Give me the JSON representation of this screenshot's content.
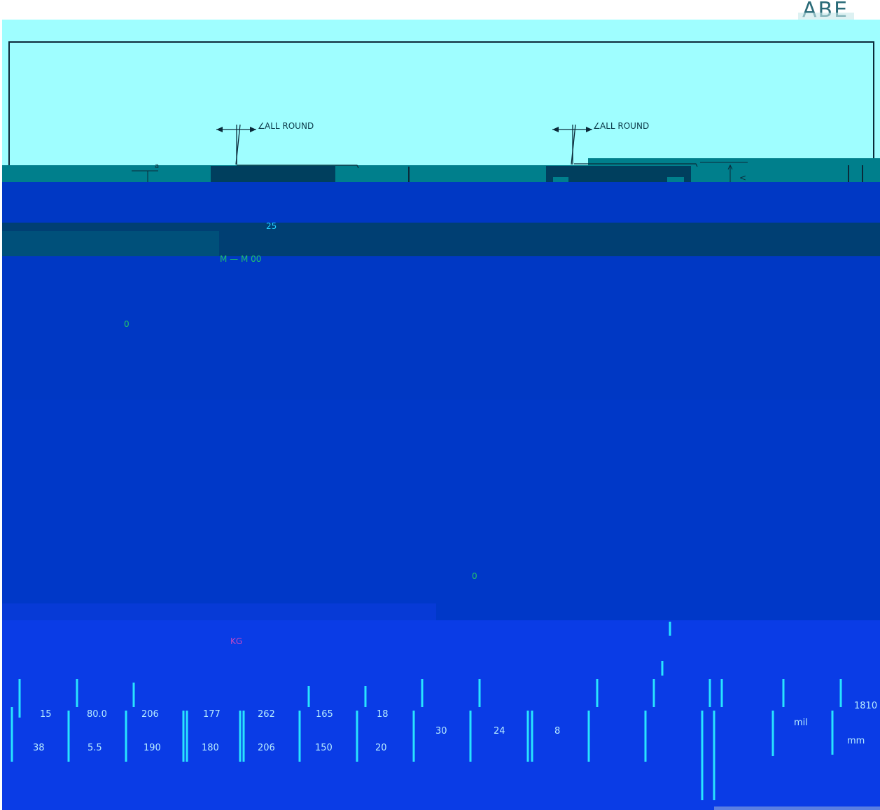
{
  "logo": {
    "text": "ABE"
  },
  "weld_notes": {
    "left": "ALL ROUND",
    "right": "ALL ROUND"
  },
  "annotations": {
    "small_label_a": "a",
    "label_m": "M",
    "label_dim_top": "25",
    "label_dim_formula": "M — M 00",
    "marker_left": "0",
    "marker_right": "0",
    "table_note": "KG"
  },
  "table": {
    "row1": [
      "15",
      "80.0",
      "206",
      "177",
      "262",
      "165",
      "18",
      "30",
      "24",
      "8",
      "",
      "mil",
      "1810"
    ],
    "row2": [
      "38",
      "5.5",
      "190",
      "180",
      "206",
      "150",
      "20",
      "",
      "",
      "",
      "",
      "",
      "mm"
    ]
  },
  "colors": {
    "sky": "#9ffeff",
    "teal": "#007f8c",
    "navy": "#003f73",
    "blue": "#0038c4",
    "bright_blue": "#0a3ce6",
    "dark_teal": "#00707d",
    "cyan_line": "#28e4ff"
  }
}
